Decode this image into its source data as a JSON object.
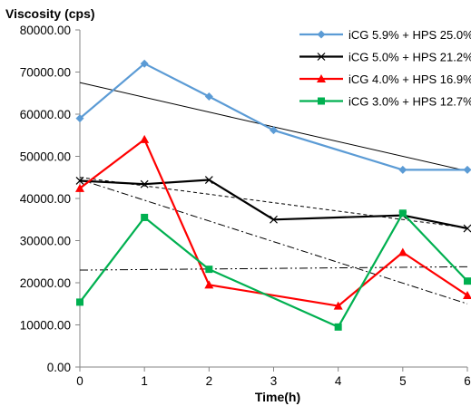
{
  "chart_data": {
    "type": "line",
    "title": "",
    "ylabel": "Viscosity (cps)",
    "xlabel": "Time(h)",
    "x": [
      0,
      1,
      2,
      3,
      4,
      5,
      6
    ],
    "xlim": [
      0,
      6
    ],
    "ylim": [
      0,
      80000
    ],
    "yticks": [
      0,
      10000,
      20000,
      30000,
      40000,
      50000,
      60000,
      70000,
      80000
    ],
    "ytick_labels": [
      "0.00",
      "10000.00",
      "20000.00",
      "30000.00",
      "40000.00",
      "50000.00",
      "60000.00",
      "70000.00",
      "80000.00"
    ],
    "xtick_labels": [
      "0",
      "1",
      "2",
      "3",
      "4",
      "5",
      "6"
    ],
    "grid": false,
    "legend_position": "top-right",
    "series": [
      {
        "name": "iCG 5.9% + HPS 25.0%",
        "color": "#5b9bd5",
        "marker": "diamond",
        "x": [
          0,
          1,
          2,
          3,
          5,
          6
        ],
        "values": [
          59000,
          72000,
          64200,
          56200,
          46800,
          46800
        ]
      },
      {
        "name": "iCG 5.0% + HPS 21.2%",
        "color": "#000000",
        "marker": "x",
        "x": [
          0,
          1,
          2,
          3,
          5,
          6
        ],
        "values": [
          44200,
          43400,
          44400,
          35000,
          36000,
          32900
        ]
      },
      {
        "name": "iCG 4.0% + HPS 16.9%",
        "color": "#ff0000",
        "marker": "triangle",
        "x": [
          0,
          1,
          2,
          4,
          5,
          6
        ],
        "values": [
          42400,
          54000,
          19500,
          14500,
          27200,
          17000
        ]
      },
      {
        "name": "iCG 3.0% + HPS 12.7%",
        "color": "#00b050",
        "marker": "square",
        "x": [
          0,
          1,
          2,
          4,
          5,
          6
        ],
        "values": [
          15400,
          35500,
          23200,
          9500,
          36500,
          20400
        ]
      }
    ],
    "trendlines": [
      {
        "series": "iCG 5.9% + HPS 25.0%",
        "style": "solid",
        "color": "#000000",
        "x": [
          0,
          6
        ],
        "values": [
          67500,
          46500
        ]
      },
      {
        "series": "iCG 5.0% + HPS 21.2%",
        "style": "dashed",
        "color": "#000000",
        "x": [
          0,
          6
        ],
        "values": [
          45000,
          33000
        ]
      },
      {
        "series": "iCG 4.0% + HPS 16.9%",
        "style": "dash-dot",
        "color": "#000000",
        "x": [
          0,
          6
        ],
        "values": [
          44500,
          15000
        ]
      },
      {
        "series": "iCG 3.0% + HPS 12.7%",
        "style": "dash-dot-dot",
        "color": "#000000",
        "x": [
          0,
          6
        ],
        "values": [
          23000,
          23800
        ]
      }
    ]
  }
}
